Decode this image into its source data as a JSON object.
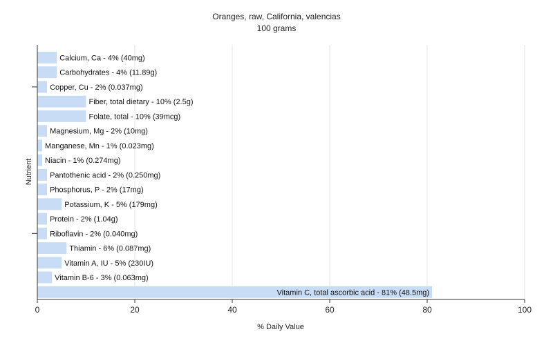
{
  "chart_data": {
    "type": "bar",
    "orientation": "horizontal",
    "title": "Oranges, raw, California, valencias",
    "subtitle": "100 grams",
    "xlabel": "% Daily Value",
    "ylabel": "Nutrient",
    "xlim": [
      0,
      100
    ],
    "xticks": [
      0,
      20,
      40,
      60,
      80,
      100
    ],
    "grid": true,
    "bar_color": "#c8ddf5",
    "categories": [
      "Calcium, Ca - 4% (40mg)",
      "Carbohydrates - 4% (11.89g)",
      "Copper, Cu - 2% (0.037mg)",
      "Fiber, total dietary - 10% (2.5g)",
      "Folate, total - 10% (39mcg)",
      "Magnesium, Mg - 2% (10mg)",
      "Manganese, Mn - 1% (0.023mg)",
      "Niacin - 1% (0.274mg)",
      "Pantothenic acid - 2% (0.250mg)",
      "Phosphorus, P - 2% (17mg)",
      "Potassium, K - 5% (179mg)",
      "Protein - 2% (1.04g)",
      "Riboflavin - 2% (0.040mg)",
      "Thiamin - 6% (0.087mg)",
      "Vitamin A, IU - 5% (230IU)",
      "Vitamin B-6 - 3% (0.063mg)",
      "Vitamin C, total ascorbic acid - 81% (48.5mg)"
    ],
    "values": [
      4,
      4,
      2,
      10,
      10,
      2,
      1,
      1,
      2,
      2,
      5,
      2,
      2,
      6,
      5,
      3,
      81
    ]
  }
}
